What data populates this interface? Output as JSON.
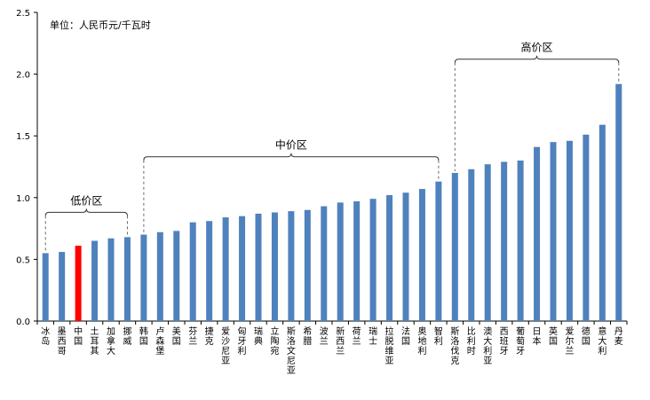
{
  "chart_data": {
    "type": "bar",
    "unit_label": "单位：人民币元/千瓦时",
    "ylim": [
      0,
      2.5
    ],
    "yticks": [
      "0.0",
      "0.5",
      "1.0",
      "1.5",
      "2.0",
      "2.5"
    ],
    "grid": false,
    "colors": {
      "default": "#4f81bd",
      "highlight": "#ff0000"
    },
    "categories": [
      "冰岛",
      "墨西哥",
      "中国",
      "土耳其",
      "加拿大",
      "挪威",
      "韩国",
      "卢森堡",
      "美国",
      "芬兰",
      "捷克",
      "爱沙尼亚",
      "匈牙利",
      "瑞典",
      "立陶宛",
      "斯洛文尼亚",
      "希腊",
      "波兰",
      "新西兰",
      "荷兰",
      "瑞士",
      "拉脱维亚",
      "法国",
      "奥地利",
      "智利",
      "斯洛伐克",
      "比利时",
      "澳大利亚",
      "西班牙",
      "葡萄牙",
      "日本",
      "英国",
      "爱尔兰",
      "德国",
      "意大利",
      "丹麦"
    ],
    "values": [
      0.55,
      0.56,
      0.61,
      0.65,
      0.67,
      0.68,
      0.7,
      0.72,
      0.73,
      0.8,
      0.81,
      0.84,
      0.85,
      0.87,
      0.88,
      0.89,
      0.9,
      0.93,
      0.96,
      0.97,
      0.99,
      1.02,
      1.04,
      1.07,
      1.13,
      1.2,
      1.23,
      1.27,
      1.29,
      1.3,
      1.41,
      1.45,
      1.46,
      1.51,
      1.59,
      1.92
    ],
    "highlight_category": "中国",
    "groups": [
      {
        "label": "低价区",
        "from": "冰岛",
        "to": "挪威"
      },
      {
        "label": "中价区",
        "from": "韩国",
        "to": "智利"
      },
      {
        "label": "高价区",
        "from": "斯洛伐克",
        "to": "丹麦"
      }
    ]
  }
}
